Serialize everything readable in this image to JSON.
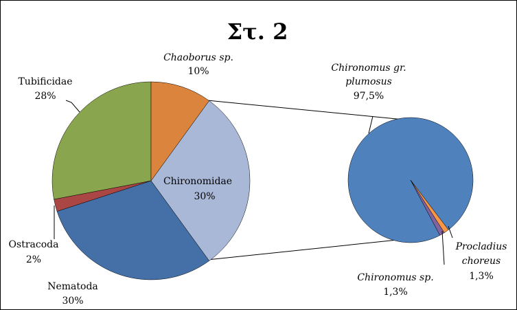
{
  "chart_data": [
    {
      "type": "pie",
      "title": "Στ. 2",
      "slices": [
        {
          "label": "Chironomidae",
          "value": 30,
          "value_label": "30%",
          "color": "#A9B8D6",
          "italic": false
        },
        {
          "label": "Nematoda",
          "value": 30,
          "value_label": "30%",
          "color": "#4570A7",
          "italic": false
        },
        {
          "label": "Ostracoda",
          "value": 2,
          "value_label": "2%",
          "color": "#AA4643",
          "italic": false
        },
        {
          "label": "Tubificidae",
          "value": 28,
          "value_label": "28%",
          "color": "#89A54E",
          "italic": false
        },
        {
          "label": "Chaoborus sp.",
          "value": 10,
          "value_label": "10%",
          "color": "#DB843D",
          "italic": true
        }
      ]
    },
    {
      "type": "pie",
      "title": "",
      "note": "breakdown of Chironomidae",
      "slices": [
        {
          "label": "Chironomus gr. plumosus",
          "value": 97.5,
          "value_label": "97,5%",
          "color": "#4F81BD",
          "italic": true
        },
        {
          "label": "Chironomus sp.",
          "value": 1.3,
          "value_label": "1,3%",
          "color": "#F79646",
          "italic": true
        },
        {
          "label": "Procladius choreus",
          "value": 1.3,
          "value_label": "1,3%",
          "color": "#8064A2",
          "italic": true
        }
      ]
    }
  ]
}
